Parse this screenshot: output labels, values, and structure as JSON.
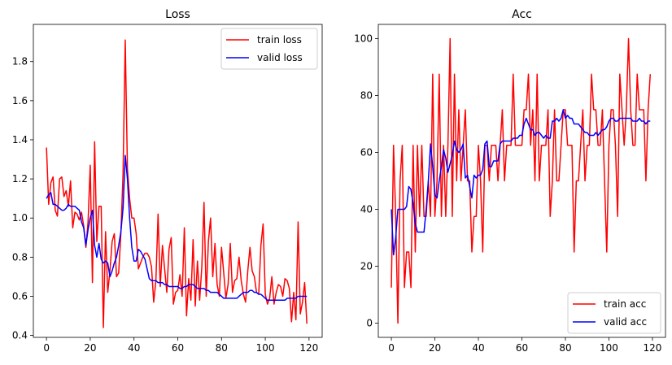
{
  "chart_data": [
    {
      "type": "line",
      "title": "Loss",
      "xlabel": "",
      "ylabel": "",
      "xlim": [
        -6,
        126
      ],
      "ylim": [
        0.39,
        1.99
      ],
      "xticks": [
        0,
        20,
        40,
        60,
        80,
        100,
        120
      ],
      "yticks": [
        0.4,
        0.6,
        0.8,
        1.0,
        1.2,
        1.4,
        1.6,
        1.8
      ],
      "ytick_labels": [
        "0.4",
        "0.6",
        "0.8",
        "1.0",
        "1.2",
        "1.4",
        "1.6",
        "1.8"
      ],
      "legend": "top-right",
      "grid": false,
      "series": [
        {
          "name": "train loss",
          "color": "#ff0000",
          "values": [
            1.36,
            1.07,
            1.18,
            1.21,
            1.04,
            1.01,
            1.2,
            1.21,
            1.11,
            1.14,
            1.06,
            1.19,
            0.95,
            1.03,
            1.02,
            0.99,
            1.03,
            0.96,
            0.85,
            0.98,
            1.27,
            0.67,
            1.39,
            0.88,
            1.06,
            1.06,
            0.44,
            0.93,
            0.62,
            0.73,
            0.88,
            0.92,
            0.7,
            0.72,
            0.92,
            1.23,
            1.91,
            1.25,
            1.1,
            1.0,
            1.0,
            0.92,
            0.74,
            0.77,
            0.8,
            0.82,
            0.82,
            0.8,
            0.75,
            0.57,
            0.68,
            1.02,
            0.65,
            0.86,
            0.74,
            0.62,
            0.84,
            0.9,
            0.56,
            0.62,
            0.63,
            0.71,
            0.6,
            0.95,
            0.5,
            0.69,
            0.58,
            0.89,
            0.55,
            0.78,
            0.58,
            0.75,
            1.08,
            0.6,
            0.88,
            1.0,
            0.7,
            0.87,
            0.66,
            0.6,
            0.85,
            0.72,
            0.59,
            0.66,
            0.87,
            0.62,
            0.68,
            0.69,
            0.8,
            0.68,
            0.61,
            0.57,
            0.73,
            0.85,
            0.73,
            0.7,
            0.62,
            0.61,
            0.86,
            0.97,
            0.61,
            0.56,
            0.59,
            0.7,
            0.56,
            0.62,
            0.66,
            0.65,
            0.6,
            0.69,
            0.68,
            0.64,
            0.47,
            0.62,
            0.48,
            0.98,
            0.51,
            0.57,
            0.67,
            0.46
          ]
        },
        {
          "name": "valid loss",
          "color": "#0000ff",
          "values": [
            1.1,
            1.12,
            1.13,
            1.07,
            1.07,
            1.06,
            1.05,
            1.04,
            1.04,
            1.05,
            1.07,
            1.06,
            1.06,
            1.06,
            1.05,
            1.04,
            0.98,
            0.95,
            0.86,
            0.94,
            1.0,
            1.04,
            0.86,
            0.8,
            0.87,
            0.79,
            0.77,
            0.78,
            0.77,
            0.7,
            0.73,
            0.77,
            0.8,
            0.86,
            0.93,
            1.05,
            1.32,
            1.2,
            1.0,
            0.85,
            0.78,
            0.78,
            0.84,
            0.83,
            0.81,
            0.79,
            0.74,
            0.69,
            0.68,
            0.68,
            0.68,
            0.67,
            0.67,
            0.67,
            0.66,
            0.66,
            0.65,
            0.65,
            0.65,
            0.65,
            0.65,
            0.64,
            0.64,
            0.65,
            0.65,
            0.66,
            0.66,
            0.66,
            0.65,
            0.64,
            0.64,
            0.64,
            0.64,
            0.63,
            0.63,
            0.62,
            0.62,
            0.62,
            0.62,
            0.61,
            0.6,
            0.59,
            0.59,
            0.59,
            0.59,
            0.59,
            0.59,
            0.59,
            0.6,
            0.61,
            0.62,
            0.62,
            0.62,
            0.63,
            0.63,
            0.62,
            0.62,
            0.61,
            0.61,
            0.6,
            0.59,
            0.58,
            0.58,
            0.58,
            0.58,
            0.58,
            0.58,
            0.58,
            0.58,
            0.58,
            0.59,
            0.59,
            0.59,
            0.59,
            0.59,
            0.6,
            0.6,
            0.6,
            0.6,
            0.6
          ]
        }
      ]
    },
    {
      "type": "line",
      "title": "Acc",
      "xlabel": "",
      "ylabel": "",
      "xlim": [
        -6,
        126
      ],
      "ylim": [
        -5,
        105
      ],
      "xticks": [
        0,
        20,
        40,
        60,
        80,
        100,
        120
      ],
      "yticks": [
        0,
        20,
        40,
        60,
        80,
        100
      ],
      "ytick_labels": [
        "0",
        "20",
        "40",
        "60",
        "80",
        "100"
      ],
      "legend": "bottom-right",
      "grid": false,
      "series": [
        {
          "name": "train acc",
          "color": "#ff0000",
          "values": [
            12.5,
            62.5,
            37.5,
            0,
            50,
            62.5,
            12.5,
            25,
            25,
            12.5,
            62.5,
            25,
            62.5,
            37.5,
            62.5,
            37.5,
            37.5,
            50,
            37.5,
            87.5,
            37.5,
            50,
            87.5,
            37.5,
            62.5,
            37.5,
            62.5,
            100,
            37.5,
            87.5,
            50,
            75,
            50,
            62.5,
            75,
            50,
            50,
            25,
            37.5,
            37.5,
            62.5,
            50,
            25,
            62.5,
            62.5,
            50,
            62.5,
            62.5,
            62.5,
            50,
            62.5,
            75,
            50,
            62.5,
            62.5,
            62.5,
            87.5,
            62.5,
            62.5,
            62.5,
            62.5,
            75,
            75,
            87.5,
            62.5,
            75,
            50,
            87.5,
            50,
            62.5,
            62.5,
            62.5,
            75,
            37.5,
            50,
            75,
            50,
            50,
            62.5,
            75,
            75,
            62.5,
            62.5,
            62.5,
            25,
            50,
            50,
            62.5,
            75,
            50,
            62.5,
            62.5,
            87.5,
            75,
            75,
            62.5,
            62.5,
            75,
            50,
            25,
            62.5,
            75,
            75,
            62.5,
            37.5,
            87.5,
            75,
            62.5,
            75,
            100,
            75,
            62.5,
            62.5,
            87.5,
            75,
            75,
            75,
            50,
            75,
            87.5
          ]
        },
        {
          "name": "valid acc",
          "color": "#0000ff",
          "values": [
            40,
            24,
            30,
            40,
            40,
            40,
            40,
            41,
            48,
            47,
            42,
            35,
            32,
            32,
            32,
            32,
            40,
            50,
            63,
            55,
            45,
            44,
            50,
            55,
            61,
            58,
            53,
            56,
            59,
            64,
            61,
            60,
            61,
            63,
            51,
            52,
            48,
            44,
            52,
            51,
            52,
            52,
            54,
            63,
            64,
            55,
            55,
            57,
            57,
            57,
            63,
            64,
            64,
            64,
            64,
            64,
            65,
            65,
            65,
            66,
            66,
            70,
            72,
            70,
            68,
            68,
            66,
            67,
            67,
            66,
            65,
            66,
            65,
            65,
            71,
            71,
            72,
            71,
            72,
            75,
            72,
            73,
            72,
            72,
            70,
            70,
            70,
            69,
            68,
            67,
            67,
            66,
            66,
            66,
            67,
            66,
            67,
            68,
            68,
            69,
            71,
            72,
            72,
            71,
            71,
            72,
            72,
            72,
            72,
            72,
            72,
            71,
            71,
            71,
            72,
            71,
            71,
            70,
            71,
            71
          ]
        }
      ]
    }
  ]
}
